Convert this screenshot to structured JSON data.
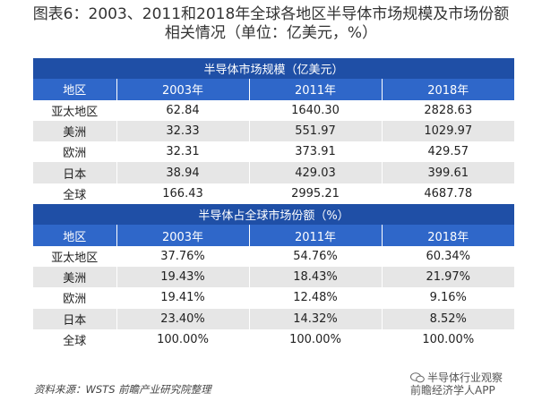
{
  "title": {
    "line1": "图表6：2003、2011和2018年全球各地区半导体市场规模及市场份额",
    "line2": "相关情况（单位：亿美元，%）"
  },
  "columns": [
    "地区",
    "2003年",
    "2011年",
    "2018年"
  ],
  "sections": [
    {
      "title": "半导体市场规模（亿美元）",
      "rows": [
        [
          "亚太地区",
          "62.84",
          "1640.30",
          "2828.63"
        ],
        [
          "美洲",
          "32.33",
          "551.97",
          "1029.97"
        ],
        [
          "欧洲",
          "32.31",
          "373.91",
          "429.57"
        ],
        [
          "日本",
          "38.94",
          "429.03",
          "399.61"
        ],
        [
          "全球",
          "166.43",
          "2995.21",
          "4687.78"
        ]
      ]
    },
    {
      "title": "半导体占全球市场份额（%）",
      "rows": [
        [
          "亚太地区",
          "37.76%",
          "54.76%",
          "60.34%"
        ],
        [
          "美洲",
          "19.43%",
          "18.43%",
          "21.97%"
        ],
        [
          "欧洲",
          "19.41%",
          "12.48%",
          "9.16%"
        ],
        [
          "日本",
          "23.40%",
          "14.32%",
          "8.52%"
        ],
        [
          "全球",
          "100.00%",
          "100.00%",
          "100.00%"
        ]
      ]
    }
  ],
  "source": "资料来源：WSTS 前瞻产业研究院整理",
  "watermark": {
    "line1": "半导体行业观察",
    "line2": "前瞻经济学人APP"
  }
}
